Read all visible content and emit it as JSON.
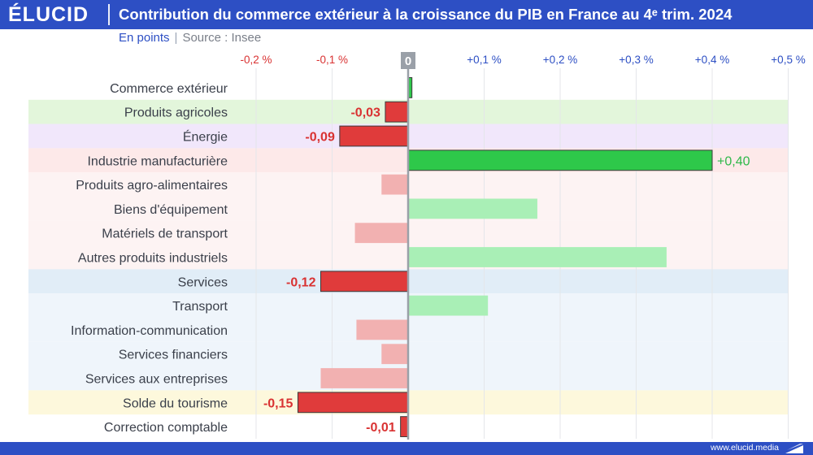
{
  "header": {
    "logo": "ÉLUCID",
    "title": "Contribution du commerce extérieur à la croissance du PIB en France au 4ᵉ trim. 2024"
  },
  "subtitle": {
    "unit": "En points",
    "separator": "|",
    "source": "Source : Insee"
  },
  "footer": {
    "url": "www.elucid.media"
  },
  "colors": {
    "brand_blue": "#2d4fc4",
    "negative_strong": "#e03b3b",
    "negative_light": "#f2b1b1",
    "positive_strong": "#2ec84a",
    "positive_light": "#a9efb6",
    "band_green": "#e3f6db",
    "band_purple": "#f1e7fb",
    "band_pink": "#fde9e9",
    "band_pink_light": "#fdf3f3",
    "band_blue": "#e1edf7",
    "band_blue_light": "#eff5fb",
    "band_yellow": "#fdf8dc",
    "negative_label": "#d93232",
    "positive_label": "#2fb84a"
  },
  "chart_data": {
    "type": "bar",
    "orientation": "horizontal",
    "xlim": [
      -0.25,
      0.5
    ],
    "xticks": [
      -0.2,
      -0.1,
      0,
      0.1,
      0.2,
      0.3,
      0.4,
      0.5
    ],
    "xtick_labels": [
      "-0,2 %",
      "-0,1 %",
      "0",
      "+0,1 %",
      "+0,2 %",
      "+0,3 %",
      "+0,4 %",
      "+0,5 %"
    ],
    "grid": true,
    "categories": [
      {
        "label": "Commerce extérieur",
        "value": 0.005,
        "style": "strong",
        "band": "none",
        "data_label": ""
      },
      {
        "label": "Produits agricoles",
        "value": -0.03,
        "style": "strong",
        "band": "band_green",
        "data_label": "-0,03"
      },
      {
        "label": "Énergie",
        "value": -0.09,
        "style": "strong",
        "band": "band_purple",
        "data_label": "-0,09"
      },
      {
        "label": "Industrie manufacturière",
        "value": 0.4,
        "style": "strong",
        "band": "band_pink",
        "data_label": "+0,40"
      },
      {
        "label": "Produits agro-alimentaires",
        "value": -0.035,
        "style": "light",
        "band": "band_pink_light",
        "data_label": ""
      },
      {
        "label": "Biens d'équipement",
        "value": 0.17,
        "style": "light",
        "band": "band_pink_light",
        "data_label": ""
      },
      {
        "label": "Matériels de transport",
        "value": -0.07,
        "style": "light",
        "band": "band_pink_light",
        "data_label": ""
      },
      {
        "label": "Autres produits industriels",
        "value": 0.34,
        "style": "light",
        "band": "band_pink_light",
        "data_label": ""
      },
      {
        "label": "Services",
        "value": -0.115,
        "style": "strong",
        "band": "band_blue",
        "data_label": "-0,12"
      },
      {
        "label": "Transport",
        "value": 0.105,
        "style": "light",
        "band": "band_blue_light",
        "data_label": ""
      },
      {
        "label": "Information-communication",
        "value": -0.068,
        "style": "light",
        "band": "band_blue_light",
        "data_label": ""
      },
      {
        "label": "Services financiers",
        "value": -0.035,
        "style": "light",
        "band": "band_blue_light",
        "data_label": ""
      },
      {
        "label": "Services aux entreprises",
        "value": -0.115,
        "style": "light",
        "band": "band_blue_light",
        "data_label": ""
      },
      {
        "label": "Solde du tourisme",
        "value": -0.145,
        "style": "strong",
        "band": "band_yellow",
        "data_label": "-0,15"
      },
      {
        "label": "Correction comptable",
        "value": -0.01,
        "style": "strong",
        "band": "none",
        "data_label": "-0,01"
      }
    ]
  }
}
